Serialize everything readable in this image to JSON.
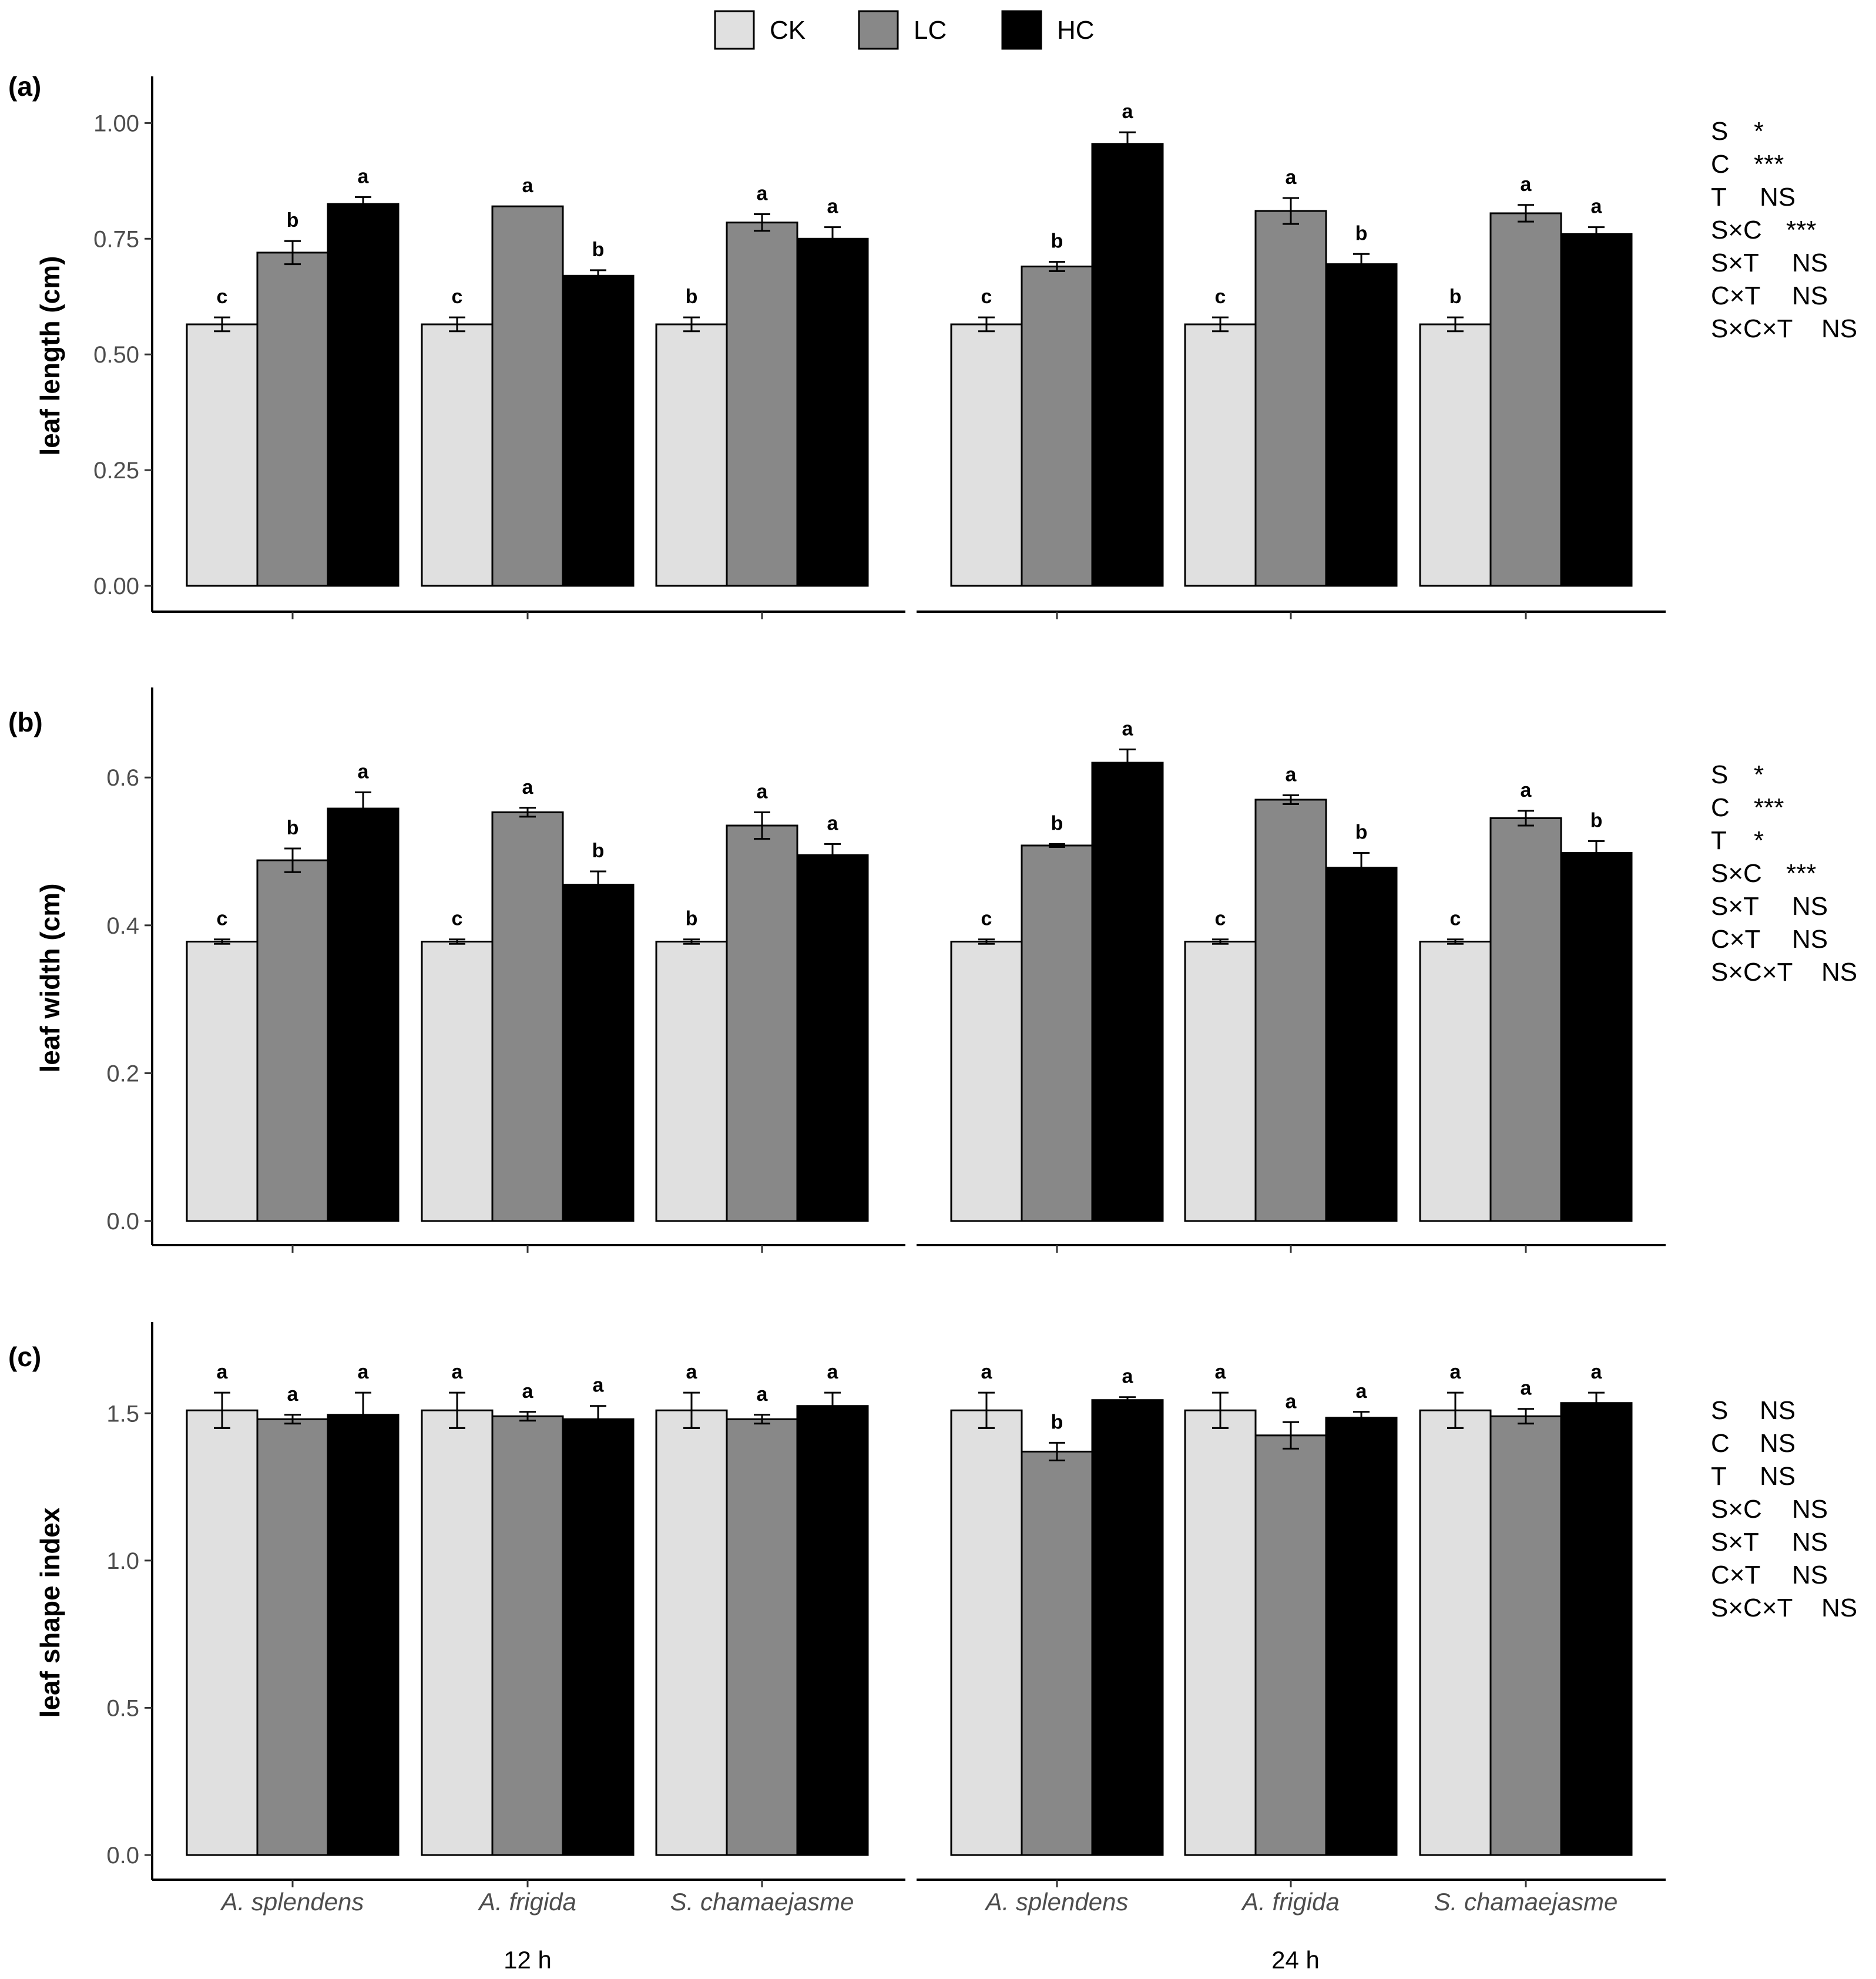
{
  "legend": {
    "items": [
      {
        "label": "CK",
        "color": "#e0e0e0"
      },
      {
        "label": "LC",
        "color": "#888888"
      },
      {
        "label": "HC",
        "color": "#000000"
      }
    ]
  },
  "x_axis": {
    "species": [
      "A. splendens",
      "A. frigida",
      "S. chamaejasme"
    ],
    "time_labels": [
      "12 h",
      "24 h"
    ]
  },
  "chart_data": [
    {
      "type": "bar",
      "panel_label": "(a)",
      "ylabel": "leaf length (cm)",
      "ylim": [
        0,
        1.05
      ],
      "yticks": [
        0,
        0.25,
        0.5,
        0.75,
        1.0
      ],
      "ytick_labels": [
        "0.00",
        "0.25",
        "0.50",
        "0.75",
        "1.00"
      ],
      "facets": [
        {
          "time": "12 h",
          "groups": [
            {
              "species": "A. splendens",
              "values": [
                0.565,
                0.72,
                0.825
              ],
              "errors": [
                0.015,
                0.025,
                0.015
              ],
              "letters": [
                "c",
                "b",
                "a"
              ]
            },
            {
              "species": "A. frigida",
              "values": [
                0.565,
                0.82,
                0.67
              ],
              "errors": [
                0.015,
                0.0,
                0.012
              ],
              "letters": [
                "c",
                "a",
                "b"
              ]
            },
            {
              "species": "S. chamaejasme",
              "values": [
                0.565,
                0.785,
                0.75
              ],
              "errors": [
                0.015,
                0.018,
                0.025
              ],
              "letters": [
                "b",
                "a",
                "a"
              ]
            }
          ]
        },
        {
          "time": "24 h",
          "groups": [
            {
              "species": "A. splendens",
              "values": [
                0.565,
                0.69,
                0.955
              ],
              "errors": [
                0.015,
                0.01,
                0.025
              ],
              "letters": [
                "c",
                "b",
                "a"
              ]
            },
            {
              "species": "A. frigida",
              "values": [
                0.565,
                0.81,
                0.695
              ],
              "errors": [
                0.015,
                0.028,
                0.022
              ],
              "letters": [
                "c",
                "a",
                "b"
              ]
            },
            {
              "species": "S. chamaejasme",
              "values": [
                0.565,
                0.805,
                0.76
              ],
              "errors": [
                0.015,
                0.018,
                0.015
              ],
              "letters": [
                "b",
                "a",
                "a"
              ]
            }
          ]
        }
      ],
      "stats": [
        {
          "term": "S",
          "value": "*"
        },
        {
          "term": "C",
          "value": "***"
        },
        {
          "term": "T",
          "value": "NS"
        },
        {
          "term": "S×C",
          "value": "***"
        },
        {
          "term": "S×T",
          "value": "NS"
        },
        {
          "term": "C×T",
          "value": "NS"
        },
        {
          "term": "S×C×T",
          "value": "NS"
        }
      ]
    },
    {
      "type": "bar",
      "panel_label": "(b)",
      "ylabel": "leaf width (cm)",
      "ylim": [
        0,
        0.69
      ],
      "yticks": [
        0,
        0.2,
        0.4,
        0.6
      ],
      "ytick_labels": [
        "0.0",
        "0.2",
        "0.4",
        "0.6"
      ],
      "facets": [
        {
          "time": "12 h",
          "groups": [
            {
              "species": "A. splendens",
              "values": [
                0.378,
                0.488,
                0.558
              ],
              "errors": [
                0.003,
                0.016,
                0.022
              ],
              "letters": [
                "c",
                "b",
                "a"
              ]
            },
            {
              "species": "A. frigida",
              "values": [
                0.378,
                0.553,
                0.455
              ],
              "errors": [
                0.003,
                0.006,
                0.018
              ],
              "letters": [
                "c",
                "a",
                "b"
              ]
            },
            {
              "species": "S. chamaejasme",
              "values": [
                0.378,
                0.535,
                0.495
              ],
              "errors": [
                0.003,
                0.018,
                0.015
              ],
              "letters": [
                "b",
                "a",
                "a"
              ]
            }
          ]
        },
        {
          "time": "24 h",
          "groups": [
            {
              "species": "A. splendens",
              "values": [
                0.378,
                0.508,
                0.62
              ],
              "errors": [
                0.003,
                0.002,
                0.018
              ],
              "letters": [
                "c",
                "b",
                "a"
              ]
            },
            {
              "species": "A. frigida",
              "values": [
                0.378,
                0.57,
                0.478
              ],
              "errors": [
                0.003,
                0.006,
                0.02
              ],
              "letters": [
                "c",
                "a",
                "b"
              ]
            },
            {
              "species": "S. chamaejasme",
              "values": [
                0.378,
                0.545,
                0.498
              ],
              "errors": [
                0.003,
                0.01,
                0.016
              ],
              "letters": [
                "c",
                "a",
                "b"
              ]
            }
          ]
        }
      ],
      "stats": [
        {
          "term": "S",
          "value": "*"
        },
        {
          "term": "C",
          "value": "***"
        },
        {
          "term": "T",
          "value": "*"
        },
        {
          "term": "S×C",
          "value": "***"
        },
        {
          "term": "S×T",
          "value": "NS"
        },
        {
          "term": "C×T",
          "value": "NS"
        },
        {
          "term": "S×C×T",
          "value": "NS"
        }
      ]
    },
    {
      "type": "bar",
      "panel_label": "(c)",
      "ylabel": "leaf shape index",
      "ylim": [
        0,
        1.73
      ],
      "yticks": [
        0,
        0.5,
        1.0,
        1.5
      ],
      "ytick_labels": [
        "0.0",
        "0.5",
        "1.0",
        "1.5"
      ],
      "facets": [
        {
          "time": "12 h",
          "groups": [
            {
              "species": "A. splendens",
              "values": [
                1.51,
                1.48,
                1.495
              ],
              "errors": [
                0.06,
                0.015,
                0.075
              ],
              "letters": [
                "a",
                "a",
                "a"
              ]
            },
            {
              "species": "A. frigida",
              "values": [
                1.51,
                1.49,
                1.48
              ],
              "errors": [
                0.06,
                0.015,
                0.045
              ],
              "letters": [
                "a",
                "a",
                "a"
              ]
            },
            {
              "species": "S. chamaejasme",
              "values": [
                1.51,
                1.48,
                1.525
              ],
              "errors": [
                0.06,
                0.015,
                0.045
              ],
              "letters": [
                "a",
                "a",
                "a"
              ]
            }
          ]
        },
        {
          "time": "24 h",
          "groups": [
            {
              "species": "A. splendens",
              "values": [
                1.51,
                1.37,
                1.545
              ],
              "errors": [
                0.06,
                0.03,
                0.01
              ],
              "letters": [
                "a",
                "b",
                "a"
              ]
            },
            {
              "species": "A. frigida",
              "values": [
                1.51,
                1.425,
                1.485
              ],
              "errors": [
                0.06,
                0.045,
                0.02
              ],
              "letters": [
                "a",
                "a",
                "a"
              ]
            },
            {
              "species": "S. chamaejasme",
              "values": [
                1.51,
                1.49,
                1.535
              ],
              "errors": [
                0.06,
                0.025,
                0.035
              ],
              "letters": [
                "a",
                "a",
                "a"
              ]
            }
          ]
        }
      ],
      "stats": [
        {
          "term": "S",
          "value": "NS"
        },
        {
          "term": "C",
          "value": "NS"
        },
        {
          "term": "T",
          "value": "NS"
        },
        {
          "term": "S×C",
          "value": "NS"
        },
        {
          "term": "S×T",
          "value": "NS"
        },
        {
          "term": "C×T",
          "value": "NS"
        },
        {
          "term": "S×C×T",
          "value": "NS"
        }
      ]
    }
  ]
}
